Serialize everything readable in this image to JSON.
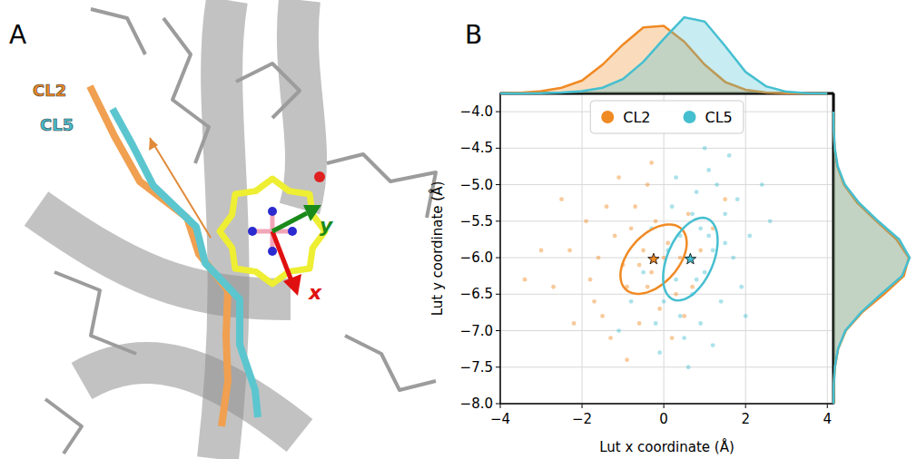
{
  "panel_a": {
    "label": "A",
    "cl2": "CL2",
    "cl5": "CL5",
    "axis_x": "x",
    "axis_y": "y"
  },
  "chart_data": {
    "type": "scatter",
    "panel_label": "B",
    "x_label": "Lut x coordinate (Å)",
    "y_label": "Lut y coordinate (Å)",
    "xlim": [
      -4,
      4.15
    ],
    "ylim": [
      -8,
      -3.75
    ],
    "xticks": [
      {
        "value": -4,
        "label": "−4"
      },
      {
        "value": -2,
        "label": "−2"
      },
      0,
      2,
      4
    ],
    "yticks": [
      {
        "value": -8,
        "label": "−8.0"
      },
      {
        "value": -7.5,
        "label": "−7.5"
      },
      {
        "value": -7,
        "label": "−7.0"
      },
      {
        "value": -6.5,
        "label": "−6.5"
      },
      {
        "value": -6,
        "label": "−6.0"
      },
      {
        "value": -5.5,
        "label": "−5.5"
      },
      {
        "value": -5,
        "label": "−5.0"
      },
      {
        "value": -4.5,
        "label": "−4.5"
      },
      {
        "value": -4,
        "label": "−4.0"
      }
    ],
    "grid": true,
    "legend": "upper center",
    "marker": "circle",
    "density_x": [
      -4,
      -3.5,
      -3,
      -2.5,
      -2,
      -1.5,
      -1,
      -0.5,
      0,
      0.5,
      1,
      1.5,
      2,
      2.5,
      3,
      3.5,
      4
    ],
    "density_y": [
      -8,
      -7.75,
      -7.5,
      -7.25,
      -7,
      -6.75,
      -6.5,
      -6.25,
      -6,
      -5.75,
      -5.5,
      -5.25,
      -5,
      -4.75,
      -4.5,
      -4.25,
      -4
    ],
    "x_density_lim": [
      0,
      0.6
    ],
    "y_density_lim": [
      0,
      0.82
    ],
    "series": [
      {
        "name": "CL2",
        "color": "#f08a24",
        "x": [
          -1.8,
          -1.2,
          -0.9,
          -0.5,
          -0.3,
          0.1,
          0.4,
          -1.5,
          -2.3,
          -0.7,
          0.6,
          -0.1,
          -1.0,
          -2.7,
          0.9,
          -0.4,
          -1.3,
          0.3,
          -0.8,
          -1.9,
          -3.0,
          -0.2,
          0.7,
          -1.6,
          -0.6,
          1.2,
          -2.2,
          -1.1,
          0.2,
          -0.4,
          -3.4,
          1.5,
          -1.4,
          -0.9,
          0.0,
          -2.5,
          -0.3,
          0.5,
          -1.7,
          -0.6
        ],
        "values": [
          -6.3,
          -5.7,
          -6.4,
          -5.9,
          -6.2,
          -5.8,
          -6.0,
          -6.8,
          -5.9,
          -5.3,
          -5.4,
          -6.7,
          -6.1,
          -6.4,
          -5.9,
          -5.0,
          -7.1,
          -6.5,
          -5.6,
          -5.5,
          -5.9,
          -5.5,
          -6.4,
          -6.0,
          -6.9,
          -5.6,
          -6.9,
          -4.9,
          -7.1,
          -6.4,
          -6.3,
          -5.2,
          -5.3,
          -7.4,
          -6.0,
          -5.2,
          -4.7,
          -6.8,
          -6.6,
          -6.1
        ],
        "mean": [
          -0.25,
          -6.02
        ],
        "ellipse": {
          "cx": -0.25,
          "cy": -6.02,
          "rx": 0.85,
          "ry": 0.4,
          "angle": 20
        },
        "x_density": [
          0,
          0.005,
          0.015,
          0.04,
          0.09,
          0.2,
          0.34,
          0.46,
          0.47,
          0.36,
          0.2,
          0.08,
          0.025,
          0.006,
          0.001,
          0,
          0
        ],
        "y_density": [
          0,
          0.003,
          0.015,
          0.05,
          0.13,
          0.3,
          0.53,
          0.74,
          0.79,
          0.66,
          0.45,
          0.25,
          0.11,
          0.04,
          0.012,
          0.003,
          0
        ]
      },
      {
        "name": "CL5",
        "color": "#45bfd0",
        "x": [
          0.6,
          0.9,
          0.3,
          1.2,
          0.0,
          1.5,
          0.7,
          1.0,
          0.4,
          1.8,
          -0.2,
          0.8,
          1.4,
          0.2,
          2.1,
          -0.5,
          1.1,
          0.5,
          1.7,
          0.9,
          -0.8,
          2.4,
          0.1,
          1.3,
          0.6,
          1.9,
          -0.3,
          1.0,
          2.6,
          0.4,
          1.6,
          -1.1,
          0.7,
          1.2,
          2.0,
          0.3,
          1.5,
          0.8,
          -0.1,
          1.1
        ],
        "values": [
          -6.0,
          -5.6,
          -6.3,
          -5.9,
          -6.6,
          -5.4,
          -6.5,
          -6.2,
          -5.7,
          -5.2,
          -6.9,
          -5.1,
          -6.6,
          -5.3,
          -5.7,
          -6.2,
          -4.8,
          -7.1,
          -6.0,
          -6.9,
          -6.6,
          -5.0,
          -5.9,
          -5.0,
          -7.5,
          -6.4,
          -5.6,
          -4.5,
          -5.5,
          -6.8,
          -4.6,
          -7.0,
          -5.4,
          -7.2,
          -6.8,
          -4.9,
          -5.8,
          -6.3,
          -7.3,
          -5.7
        ],
        "mean": [
          0.65,
          -6.02
        ],
        "ellipse": {
          "cx": 0.65,
          "cy": -6.02,
          "rx": 0.75,
          "ry": 0.45,
          "angle": 35
        },
        "x_density": [
          0,
          0,
          0.002,
          0.006,
          0.015,
          0.04,
          0.1,
          0.22,
          0.38,
          0.53,
          0.5,
          0.33,
          0.15,
          0.05,
          0.012,
          0.002,
          0
        ],
        "y_density": [
          0,
          0.003,
          0.014,
          0.048,
          0.125,
          0.29,
          0.5,
          0.72,
          0.8,
          0.69,
          0.47,
          0.27,
          0.12,
          0.045,
          0.013,
          0.003,
          0
        ]
      }
    ]
  }
}
